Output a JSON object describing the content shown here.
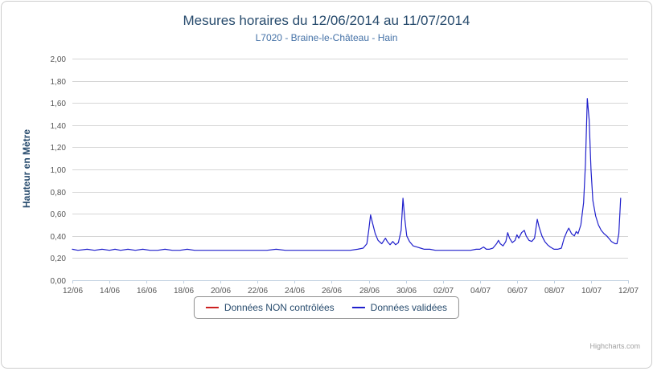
{
  "title": "Mesures horaires du 12/06/2014 au 11/07/2014",
  "subtitle": "L7020 - Braine-le-Château - Hain",
  "credits": "Highcharts.com",
  "chart_data": {
    "type": "line",
    "title": "Mesures horaires du 12/06/2014 au 11/07/2014",
    "subtitle": "L7020 - Braine-le-Château - Hain",
    "xlabel": "",
    "ylabel": "Hauteur en Mètre",
    "ylim": [
      0,
      2.0
    ],
    "ytick_step": 0.2,
    "ytick_labels": [
      "0,00",
      "0,20",
      "0,40",
      "0,60",
      "0,80",
      "1,00",
      "1,20",
      "1,40",
      "1,60",
      "1,80",
      "2,00"
    ],
    "xtick_labels": [
      "12/06",
      "14/06",
      "16/06",
      "18/06",
      "20/06",
      "22/06",
      "24/06",
      "26/06",
      "28/06",
      "30/06",
      "02/07",
      "04/07",
      "06/07",
      "08/07",
      "10/07",
      "12/07"
    ],
    "xtick_day_step": 2,
    "x_range_days": [
      0,
      30
    ],
    "grid": true,
    "legend_position": "bottom",
    "legend": [
      {
        "label": "Données NON contrôlées",
        "color": "#cc2020"
      },
      {
        "label": "Données validées",
        "color": "#2020cc"
      }
    ],
    "series": [
      {
        "name": "Données NON contrôlées",
        "color": "#cc2020",
        "points": []
      },
      {
        "name": "Données validées",
        "color": "#2020cc",
        "points": [
          [
            0,
            0.28
          ],
          [
            0.3,
            0.27
          ],
          [
            0.8,
            0.28
          ],
          [
            1.2,
            0.27
          ],
          [
            1.6,
            0.28
          ],
          [
            2.0,
            0.27
          ],
          [
            2.3,
            0.28
          ],
          [
            2.6,
            0.27
          ],
          [
            3.0,
            0.28
          ],
          [
            3.4,
            0.27
          ],
          [
            3.8,
            0.28
          ],
          [
            4.2,
            0.27
          ],
          [
            4.6,
            0.27
          ],
          [
            5.0,
            0.28
          ],
          [
            5.4,
            0.27
          ],
          [
            5.8,
            0.27
          ],
          [
            6.2,
            0.28
          ],
          [
            6.6,
            0.27
          ],
          [
            7.0,
            0.27
          ],
          [
            7.5,
            0.27
          ],
          [
            8.0,
            0.27
          ],
          [
            8.5,
            0.27
          ],
          [
            9.0,
            0.27
          ],
          [
            9.5,
            0.27
          ],
          [
            10.0,
            0.27
          ],
          [
            10.5,
            0.27
          ],
          [
            11.0,
            0.28
          ],
          [
            11.5,
            0.27
          ],
          [
            12.0,
            0.27
          ],
          [
            12.5,
            0.27
          ],
          [
            13.0,
            0.27
          ],
          [
            13.5,
            0.27
          ],
          [
            14.0,
            0.27
          ],
          [
            14.5,
            0.27
          ],
          [
            15.0,
            0.27
          ],
          [
            15.4,
            0.28
          ],
          [
            15.7,
            0.29
          ],
          [
            15.9,
            0.33
          ],
          [
            16.0,
            0.45
          ],
          [
            16.1,
            0.59
          ],
          [
            16.2,
            0.52
          ],
          [
            16.35,
            0.42
          ],
          [
            16.5,
            0.36
          ],
          [
            16.7,
            0.33
          ],
          [
            16.9,
            0.38
          ],
          [
            17.0,
            0.35
          ],
          [
            17.15,
            0.32
          ],
          [
            17.3,
            0.35
          ],
          [
            17.45,
            0.32
          ],
          [
            17.6,
            0.34
          ],
          [
            17.75,
            0.45
          ],
          [
            17.85,
            0.74
          ],
          [
            17.95,
            0.55
          ],
          [
            18.05,
            0.4
          ],
          [
            18.2,
            0.35
          ],
          [
            18.4,
            0.31
          ],
          [
            18.6,
            0.3
          ],
          [
            18.8,
            0.29
          ],
          [
            19.0,
            0.28
          ],
          [
            19.3,
            0.28
          ],
          [
            19.6,
            0.27
          ],
          [
            20.0,
            0.27
          ],
          [
            20.5,
            0.27
          ],
          [
            21.0,
            0.27
          ],
          [
            21.5,
            0.27
          ],
          [
            21.8,
            0.28
          ],
          [
            22.0,
            0.28
          ],
          [
            22.2,
            0.3
          ],
          [
            22.35,
            0.28
          ],
          [
            22.5,
            0.28
          ],
          [
            22.7,
            0.29
          ],
          [
            22.9,
            0.33
          ],
          [
            23.0,
            0.36
          ],
          [
            23.1,
            0.33
          ],
          [
            23.25,
            0.31
          ],
          [
            23.4,
            0.35
          ],
          [
            23.5,
            0.43
          ],
          [
            23.6,
            0.38
          ],
          [
            23.75,
            0.34
          ],
          [
            23.9,
            0.36
          ],
          [
            24.0,
            0.41
          ],
          [
            24.1,
            0.38
          ],
          [
            24.25,
            0.43
          ],
          [
            24.4,
            0.45
          ],
          [
            24.5,
            0.4
          ],
          [
            24.65,
            0.36
          ],
          [
            24.8,
            0.35
          ],
          [
            24.95,
            0.38
          ],
          [
            25.1,
            0.55
          ],
          [
            25.2,
            0.48
          ],
          [
            25.35,
            0.4
          ],
          [
            25.5,
            0.35
          ],
          [
            25.65,
            0.32
          ],
          [
            25.8,
            0.3
          ],
          [
            26.0,
            0.28
          ],
          [
            26.2,
            0.28
          ],
          [
            26.4,
            0.29
          ],
          [
            26.55,
            0.38
          ],
          [
            26.7,
            0.44
          ],
          [
            26.8,
            0.47
          ],
          [
            26.95,
            0.42
          ],
          [
            27.1,
            0.4
          ],
          [
            27.2,
            0.44
          ],
          [
            27.3,
            0.42
          ],
          [
            27.45,
            0.5
          ],
          [
            27.6,
            0.7
          ],
          [
            27.7,
            1.05
          ],
          [
            27.8,
            1.64
          ],
          [
            27.9,
            1.45
          ],
          [
            28.0,
            1.0
          ],
          [
            28.1,
            0.72
          ],
          [
            28.25,
            0.58
          ],
          [
            28.4,
            0.5
          ],
          [
            28.55,
            0.45
          ],
          [
            28.7,
            0.42
          ],
          [
            28.85,
            0.4
          ],
          [
            29.0,
            0.37
          ],
          [
            29.1,
            0.35
          ],
          [
            29.2,
            0.34
          ],
          [
            29.3,
            0.33
          ],
          [
            29.4,
            0.33
          ],
          [
            29.5,
            0.42
          ],
          [
            29.6,
            0.74
          ]
        ]
      }
    ]
  }
}
